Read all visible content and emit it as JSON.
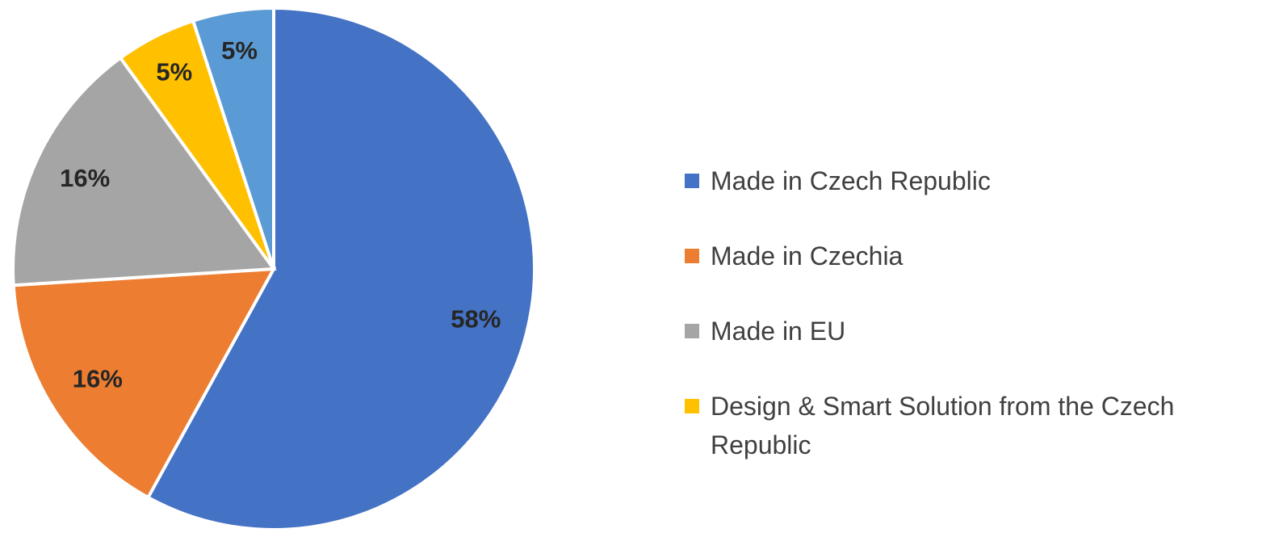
{
  "chart_data": {
    "type": "pie",
    "categories": [
      "Made in Czech Republic",
      "Made in Czechia",
      "Made in EU",
      "Design & Smart Solution from the Czech Republic",
      null
    ],
    "values": [
      58,
      16,
      16,
      5,
      5
    ],
    "value_labels": [
      "58%",
      "16%",
      "16%",
      "5%",
      "5%"
    ],
    "colors": [
      "#4472c4",
      "#ed7d31",
      "#a5a5a5",
      "#ffc000",
      "#5b9bd5"
    ],
    "legend": "right"
  }
}
